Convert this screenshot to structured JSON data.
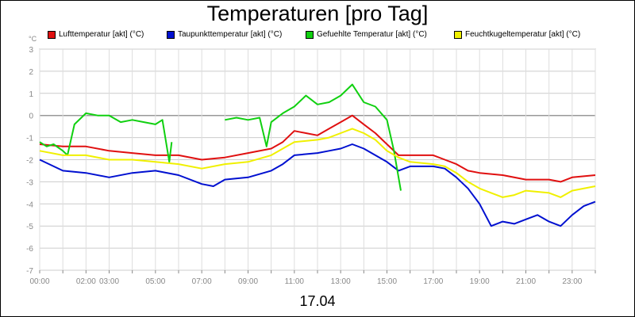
{
  "chart_data": {
    "type": "line",
    "title": "Temperaturen [pro Tag]",
    "ylabel": "°C",
    "xlabel": "17.04",
    "ylim": [
      -7,
      3
    ],
    "xlim": [
      0,
      24
    ],
    "y_ticks": [
      "3",
      "2",
      "1",
      "0",
      "-1",
      "-2",
      "-3",
      "-4",
      "-5",
      "-6",
      "-7"
    ],
    "x_ticks": [
      {
        "t": 0,
        "label": "00:00"
      },
      {
        "t": 2,
        "label": "02:00"
      },
      {
        "t": 3,
        "label": "03:00"
      },
      {
        "t": 5,
        "label": "05:00"
      },
      {
        "t": 7,
        "label": "07:00"
      },
      {
        "t": 9,
        "label": "09:00"
      },
      {
        "t": 11,
        "label": "11:00"
      },
      {
        "t": 13,
        "label": "13:00"
      },
      {
        "t": 15,
        "label": "15:00"
      },
      {
        "t": 17,
        "label": "17:00"
      },
      {
        "t": 19,
        "label": "19:00"
      },
      {
        "t": 21,
        "label": "21:00"
      },
      {
        "t": 23,
        "label": "23:00"
      }
    ],
    "grid": true,
    "legend_position": "top",
    "series": [
      {
        "name": "Lufttemperatur [akt] (°C)",
        "color": "#e01010",
        "points": [
          [
            0,
            -1.3
          ],
          [
            1,
            -1.4
          ],
          [
            2,
            -1.4
          ],
          [
            3,
            -1.6
          ],
          [
            4,
            -1.7
          ],
          [
            5,
            -1.8
          ],
          [
            6,
            -1.8
          ],
          [
            7,
            -2.0
          ],
          [
            8,
            -1.9
          ],
          [
            9,
            -1.7
          ],
          [
            10,
            -1.5
          ],
          [
            10.5,
            -1.2
          ],
          [
            11,
            -0.7
          ],
          [
            11.5,
            -0.8
          ],
          [
            12,
            -0.9
          ],
          [
            12.5,
            -0.6
          ],
          [
            13,
            -0.3
          ],
          [
            13.5,
            0.0
          ],
          [
            14,
            -0.4
          ],
          [
            14.5,
            -0.8
          ],
          [
            15,
            -1.3
          ],
          [
            15.5,
            -1.8
          ],
          [
            16,
            -1.8
          ],
          [
            17,
            -1.8
          ],
          [
            17.5,
            -2.0
          ],
          [
            18,
            -2.2
          ],
          [
            18.5,
            -2.5
          ],
          [
            19,
            -2.6
          ],
          [
            20,
            -2.7
          ],
          [
            21,
            -2.9
          ],
          [
            22,
            -2.9
          ],
          [
            22.5,
            -3.0
          ],
          [
            23,
            -2.8
          ],
          [
            24,
            -2.7
          ]
        ]
      },
      {
        "name": "Taupunkttemperatur [akt] (°C)",
        "color": "#0010d0",
        "points": [
          [
            0,
            -2.0
          ],
          [
            1,
            -2.5
          ],
          [
            2,
            -2.6
          ],
          [
            3,
            -2.8
          ],
          [
            4,
            -2.6
          ],
          [
            5,
            -2.5
          ],
          [
            6,
            -2.7
          ],
          [
            7,
            -3.1
          ],
          [
            7.5,
            -3.2
          ],
          [
            8,
            -2.9
          ],
          [
            9,
            -2.8
          ],
          [
            10,
            -2.5
          ],
          [
            10.5,
            -2.2
          ],
          [
            11,
            -1.8
          ],
          [
            12,
            -1.7
          ],
          [
            12.5,
            -1.6
          ],
          [
            13,
            -1.5
          ],
          [
            13.5,
            -1.3
          ],
          [
            14,
            -1.5
          ],
          [
            15,
            -2.1
          ],
          [
            15.5,
            -2.5
          ],
          [
            16,
            -2.3
          ],
          [
            17,
            -2.3
          ],
          [
            17.5,
            -2.4
          ],
          [
            18,
            -2.8
          ],
          [
            18.5,
            -3.3
          ],
          [
            19,
            -4.0
          ],
          [
            19.5,
            -5.0
          ],
          [
            20,
            -4.8
          ],
          [
            20.5,
            -4.9
          ],
          [
            21,
            -4.7
          ],
          [
            21.5,
            -4.5
          ],
          [
            22,
            -4.8
          ],
          [
            22.5,
            -5.0
          ],
          [
            23,
            -4.5
          ],
          [
            23.5,
            -4.1
          ],
          [
            24,
            -3.9
          ]
        ]
      },
      {
        "name": "Gefuehlte Temperatur [akt] (°C)",
        "color": "#10d010",
        "segments": [
          [
            [
              0,
              -1.2
            ],
            [
              0.3,
              -1.4
            ],
            [
              0.6,
              -1.3
            ],
            [
              1,
              -1.6
            ],
            [
              1.2,
              -1.8
            ],
            [
              1.5,
              -0.4
            ],
            [
              2,
              0.1
            ],
            [
              2.5,
              0.0
            ],
            [
              3,
              0.0
            ],
            [
              3.5,
              -0.3
            ],
            [
              4,
              -0.2
            ],
            [
              4.5,
              -0.3
            ],
            [
              5,
              -0.4
            ],
            [
              5.3,
              -0.2
            ],
            [
              5.6,
              -2.1
            ],
            [
              5.7,
              -1.2
            ]
          ],
          [
            [
              8,
              -0.2
            ],
            [
              8.5,
              -0.1
            ],
            [
              9,
              -0.2
            ],
            [
              9.5,
              -0.1
            ],
            [
              9.8,
              -1.4
            ],
            [
              10,
              -0.3
            ],
            [
              10.5,
              0.1
            ],
            [
              11,
              0.4
            ],
            [
              11.5,
              0.9
            ],
            [
              12,
              0.5
            ],
            [
              12.5,
              0.6
            ],
            [
              13,
              0.9
            ],
            [
              13.5,
              1.4
            ],
            [
              14,
              0.6
            ],
            [
              14.5,
              0.4
            ],
            [
              15,
              -0.2
            ],
            [
              15.3,
              -1.6
            ],
            [
              15.6,
              -3.4
            ]
          ]
        ]
      },
      {
        "name": "Feuchtkugeltemperatur [akt] (°C)",
        "color": "#f0f000",
        "points": [
          [
            0,
            -1.6
          ],
          [
            1,
            -1.8
          ],
          [
            2,
            -1.8
          ],
          [
            3,
            -2.0
          ],
          [
            4,
            -2.0
          ],
          [
            5,
            -2.1
          ],
          [
            6,
            -2.2
          ],
          [
            7,
            -2.4
          ],
          [
            8,
            -2.2
          ],
          [
            9,
            -2.1
          ],
          [
            10,
            -1.8
          ],
          [
            10.5,
            -1.5
          ],
          [
            11,
            -1.2
          ],
          [
            12,
            -1.1
          ],
          [
            12.5,
            -1.0
          ],
          [
            13,
            -0.8
          ],
          [
            13.5,
            -0.6
          ],
          [
            14,
            -0.8
          ],
          [
            14.5,
            -1.1
          ],
          [
            15,
            -1.6
          ],
          [
            15.5,
            -1.9
          ],
          [
            16,
            -2.1
          ],
          [
            17,
            -2.2
          ],
          [
            17.5,
            -2.3
          ],
          [
            18,
            -2.6
          ],
          [
            18.5,
            -3.0
          ],
          [
            19,
            -3.3
          ],
          [
            19.5,
            -3.5
          ],
          [
            20,
            -3.7
          ],
          [
            20.5,
            -3.6
          ],
          [
            21,
            -3.4
          ],
          [
            22,
            -3.5
          ],
          [
            22.5,
            -3.7
          ],
          [
            23,
            -3.4
          ],
          [
            24,
            -3.2
          ]
        ]
      }
    ]
  },
  "footer": {
    "date": "17.04"
  }
}
